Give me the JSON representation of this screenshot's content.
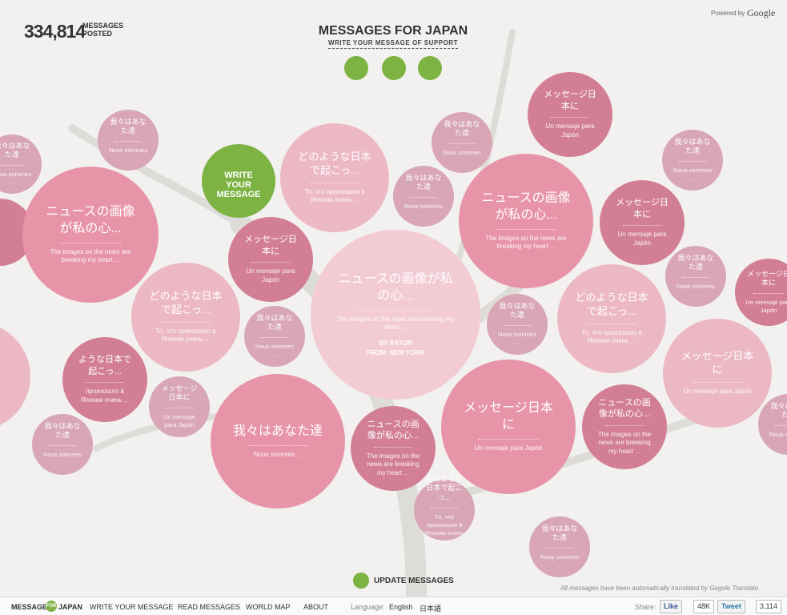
{
  "header": {
    "count": "334,814",
    "count_label": "MESSAGES POSTED",
    "title": "MESSAGES FOR JAPAN",
    "subtitle": "WRITE YOUR MESSAGE OF SUPPORT",
    "powered_by": "Powered by",
    "powered_brand": "Google"
  },
  "write_button": "WRITE YOUR MESSAGE",
  "bubbles": [
    {
      "title": "我々はあなた達",
      "text": "Nous sommes ..."
    },
    {
      "title": "我々はあなた達",
      "text": "Nous sommes ..."
    },
    {
      "title": "ニュースの画像が私の心...",
      "text": "The images on the news are breaking my heart ..."
    },
    {
      "title": "どのような日本で起こっ...",
      "text": "То, что произошло в Японии очень ..."
    },
    {
      "title": "我々はあなた達",
      "text": "Nous sommes ..."
    },
    {
      "title": "メッセージ日本に",
      "text": "Un mensaje para Japón"
    },
    {
      "title": "我々はあなた達",
      "text": "Nous sommes ..."
    },
    {
      "title": "我々はあなた達",
      "text": "Nous sommes ..."
    },
    {
      "title": "ニュースの画像が私の心...",
      "text": "The images on the news are breaking my heart ..."
    },
    {
      "title": "メッセージ日本に",
      "text": "Un mensaje para Japón"
    },
    {
      "title": "メッセージ日本に",
      "text": "Un mensaje para Japón"
    },
    {
      "title": "どのような日本で起こっ...",
      "text": "То, что произошло в Японии очень ..."
    },
    {
      "title": "ニュースの画像が私の心...",
      "text": "The images on the news are breaking my heart ...",
      "author": "BY ANTON",
      "from": "FROM: NEW YORK"
    },
    {
      "title": "我々はあなた達",
      "text": "Nous sommes ..."
    },
    {
      "title": "どのような日本で起こっ...",
      "text": "То, что произошло в Японии очень ..."
    },
    {
      "title": "我々はあなた達",
      "text": "Nous sommes ..."
    },
    {
      "title": "メッセージ日本に",
      "text": "Un mensaje para Japón"
    },
    {
      "title": "我々はあなた達",
      "text": "Nous sommes ..."
    },
    {
      "title": "ような日本で起こっ...",
      "text": "произошло в Японии очень ..."
    },
    {
      "title": "メッセージ日本に",
      "text": "Un mensaje para Japón"
    },
    {
      "title": "我々はあなた達",
      "text": "Nous sommes ..."
    },
    {
      "title": "我々はあなた達",
      "text": "Nous sommes ..."
    },
    {
      "title": "ニュースの画像が私の心...",
      "text": "The images on the news are breaking my heart ..."
    },
    {
      "title": "メッセージ日本に",
      "text": "Un mensaje para Japón"
    },
    {
      "title": "ニュースの画像が私の心...",
      "text": "The images on the news are breaking my heart ..."
    },
    {
      "title": "メッセージ日本に",
      "text": "Un mensaje para Japón"
    },
    {
      "title": "どのような日本で起こっ...",
      "text": "То, что произошло в Японии очень ..."
    },
    {
      "title": "我々はあなた達",
      "text": "Nous sommes ..."
    },
    {
      "title": "我々はあなた達",
      "text": "Nous sommes ..."
    }
  ],
  "update_button": "UPDATE MESSAGES",
  "translation_note": "All messages have been automatically translated by Gogole Translate",
  "footer": {
    "logo_left": "MESSAGES",
    "logo_mid": "FOR",
    "logo_right": "JAPAN",
    "nav": [
      "WRITE YOUR MESSAGE",
      "READ MESSAGES",
      "WORLD MAP",
      "ABOUT"
    ],
    "language_label": "Language:",
    "languages": [
      "English",
      "日本語"
    ],
    "share_label": "Share:",
    "like": "Like",
    "like_count": "48K",
    "tweet": "Tweet",
    "tweet_count": "3,114"
  }
}
